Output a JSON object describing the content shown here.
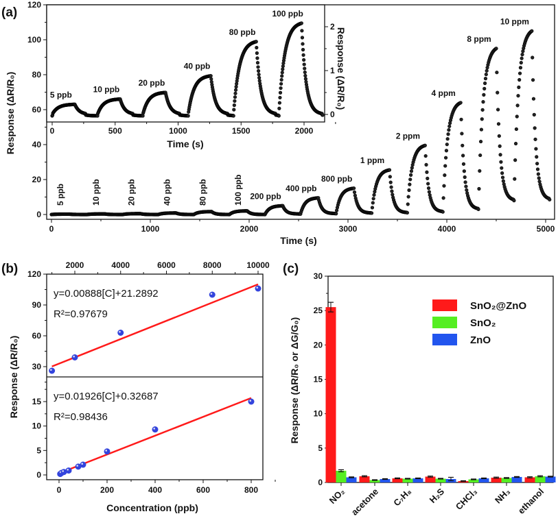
{
  "chart_data": [
    {
      "panel_label": "(a)",
      "type": "scatter",
      "xlabel": "Time (s)",
      "ylabel": "Response (ΔR/R₀)",
      "xlim": [
        0,
        5040
      ],
      "ylim": [
        -3,
        120
      ],
      "xticks": [
        0,
        1000,
        2000,
        3000,
        4000,
        5000
      ],
      "yticks": [
        0,
        20,
        40,
        60,
        80,
        100,
        120
      ],
      "exposure_on_s": 180,
      "cycle_period_s": 360,
      "exposures": [
        {
          "label": "5 ppb",
          "start": 0,
          "peak": 0.23,
          "recovery": 0.0
        },
        {
          "label": "10 ppb",
          "start": 360,
          "peak": 0.35,
          "recovery": 0.0
        },
        {
          "label": "20 ppb",
          "start": 720,
          "peak": 0.5,
          "recovery": 0.0
        },
        {
          "label": "40 ppb",
          "start": 1080,
          "peak": 0.88,
          "recovery": 0.0
        },
        {
          "label": "80 ppb",
          "start": 1440,
          "peak": 1.66,
          "recovery": 0.0
        },
        {
          "label": "100 ppb",
          "start": 1800,
          "peak": 2.08,
          "recovery": 0.0
        },
        {
          "label": "200 ppb",
          "start": 2160,
          "peak": 5,
          "recovery": 0.3
        },
        {
          "label": "400 ppb",
          "start": 2520,
          "peak": 9.5,
          "recovery": 0.5
        },
        {
          "label": "800 ppb",
          "start": 2880,
          "peak": 15,
          "recovery": 0.8
        },
        {
          "label": "1 ppm",
          "start": 3240,
          "peak": 25.5,
          "recovery": 1.0
        },
        {
          "label": "2 ppm",
          "start": 3600,
          "peak": 39.5,
          "recovery": 1.5
        },
        {
          "label": "4 ppm",
          "start": 3960,
          "peak": 64,
          "recovery": 3
        },
        {
          "label": "8 ppm",
          "start": 4320,
          "peak": 95,
          "recovery": 8
        },
        {
          "label": "10 ppm",
          "start": 4680,
          "peak": 105,
          "recovery": 8.5
        }
      ],
      "inset": {
        "xlabel": "Time (s)",
        "ylabel_right": "Response (ΔR/R₀)",
        "xlim": [
          0,
          2160
        ],
        "xticks": [
          0,
          500,
          1000,
          1500,
          2000
        ],
        "yticks_right": [
          0,
          1,
          2
        ],
        "exposure_count": 6
      }
    },
    {
      "panel_label": "(b)",
      "type": "scatter",
      "xlabel": "Concentration (ppb)",
      "ylabel": "Response (ΔR/R₀)",
      "upper": {
        "xlim": [
          -1300,
          10200
        ],
        "ylim": [
          20,
          120
        ],
        "xticks": [
          2000,
          4000,
          6000,
          8000,
          10000
        ],
        "yticks": [
          30,
          60,
          90,
          120
        ],
        "x": [
          1000,
          2000,
          4000,
          8000,
          10000
        ],
        "y": [
          26,
          39,
          63,
          100,
          106
        ],
        "fit": {
          "slope": 0.00888,
          "intercept": 21.2892,
          "equation": "y=0.00888[C]+21.2892",
          "r2": "R²=0.97679"
        }
      },
      "lower": {
        "xlim": [
          -50,
          850
        ],
        "ylim": [
          -1,
          20
        ],
        "xticks": [
          0,
          200,
          400,
          600,
          800
        ],
        "yticks": [
          0,
          5,
          10,
          15
        ],
        "x": [
          5,
          10,
          20,
          40,
          80,
          100,
          200,
          400,
          800
        ],
        "y": [
          0.2,
          0.4,
          0.6,
          0.9,
          1.7,
          2.1,
          4.8,
          9.3,
          15
        ],
        "fit": {
          "slope": 0.01926,
          "intercept": 0.32687,
          "equation": "y=0.01926[C]+0.32687",
          "r2": "R²=0.98436"
        }
      },
      "point_color": "#3344dd",
      "fit_color": "#ff1a1a"
    },
    {
      "panel_label": "(c)",
      "type": "bar",
      "ylabel": "Response (ΔR/R₀ or ΔG/G₀)",
      "ylim": [
        0,
        30
      ],
      "yticks": [
        0,
        5,
        10,
        15,
        20,
        25,
        30
      ],
      "categories": [
        "NO₂",
        "acetone",
        "C₇H₈",
        "H₂S",
        "CHCl₃",
        "NH₃",
        "ethanol"
      ],
      "legend_position": "top-right",
      "series": [
        {
          "name": "SnO₂@ZnO",
          "color": "#ff1a1a",
          "values": [
            25.5,
            0.9,
            0.6,
            0.85,
            0.2,
            0.7,
            0.75
          ],
          "errors": [
            0.7,
            0.08,
            0.06,
            0.08,
            0.05,
            0.08,
            0.08
          ]
        },
        {
          "name": "SnO₂",
          "color": "#55ee22",
          "values": [
            1.7,
            0.35,
            0.55,
            0.55,
            0.45,
            0.65,
            0.9
          ],
          "errors": [
            0.15,
            0.05,
            0.05,
            0.05,
            0.05,
            0.06,
            0.08
          ]
        },
        {
          "name": "ZnO",
          "color": "#2255ee",
          "values": [
            0.75,
            0.5,
            0.6,
            0.5,
            0.6,
            0.8,
            0.85
          ],
          "errors": [
            0.06,
            0.05,
            0.05,
            0.25,
            0.05,
            0.06,
            0.06
          ]
        }
      ]
    }
  ]
}
